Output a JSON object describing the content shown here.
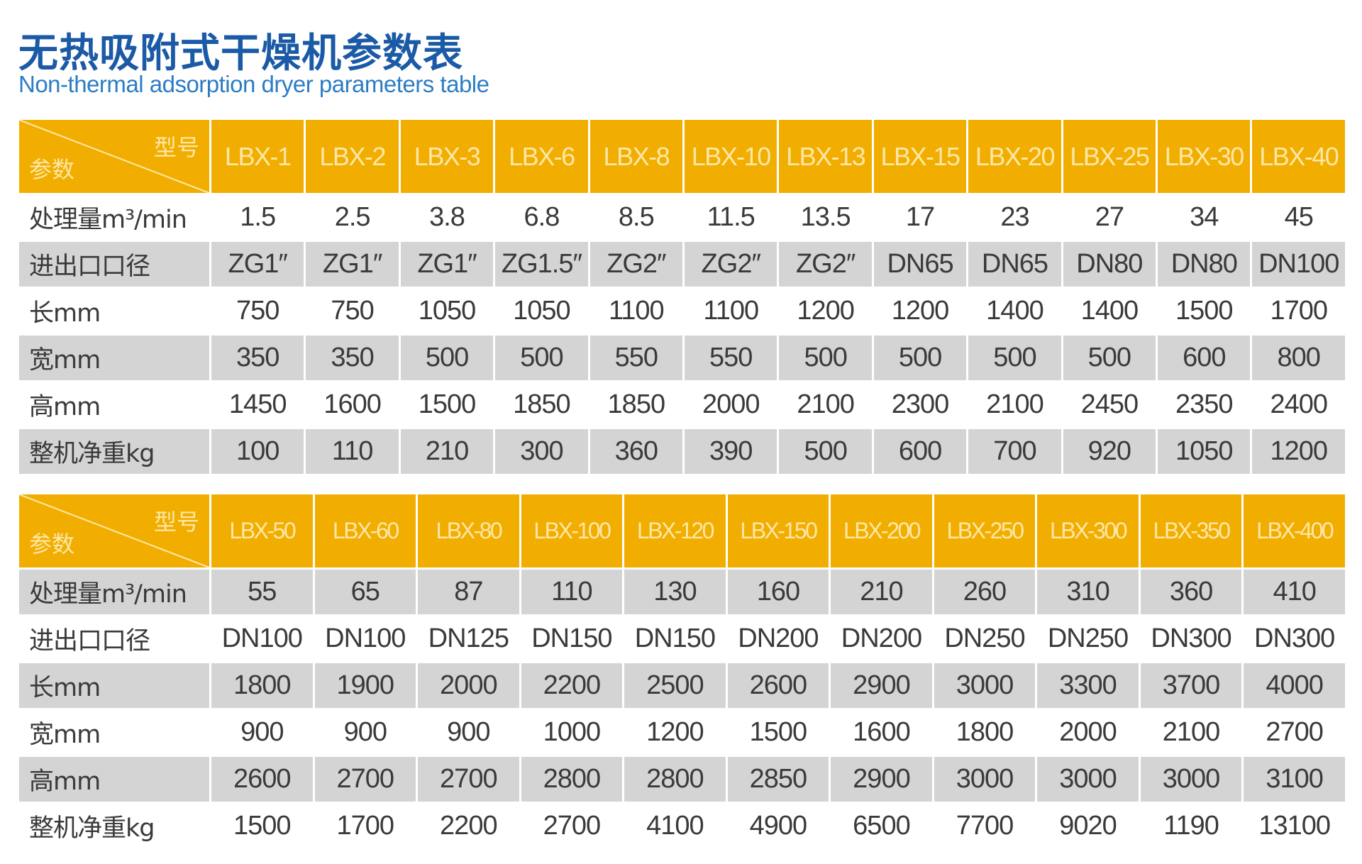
{
  "title": "无热吸附式干燥机参数表",
  "subtitle": "Non-thermal adsorption dryer parameters table",
  "colors": {
    "header": "#f2ae00",
    "stripe": "#d4d4d4",
    "title": "#1b5aa6"
  },
  "corner": {
    "model_label": "型号",
    "param_label": "参数"
  },
  "row_labels": [
    "处理量m³/min",
    "进出口口径",
    "长mm",
    "宽mm",
    "高mm",
    "整机净重kg"
  ],
  "tables": [
    {
      "models": [
        "LBX-1",
        "LBX-2",
        "LBX-3",
        "LBX-6",
        "LBX-8",
        "LBX-10",
        "LBX-13",
        "LBX-15",
        "LBX-20",
        "LBX-25",
        "LBX-30",
        "LBX-40"
      ],
      "rows": [
        [
          "1.5",
          "2.5",
          "3.8",
          "6.8",
          "8.5",
          "11.5",
          "13.5",
          "17",
          "23",
          "27",
          "34",
          "45"
        ],
        [
          "ZG1″",
          "ZG1″",
          "ZG1″",
          "ZG1.5″",
          "ZG2″",
          "ZG2″",
          "ZG2″",
          "DN65",
          "DN65",
          "DN80",
          "DN80",
          "DN100"
        ],
        [
          "750",
          "750",
          "1050",
          "1050",
          "1100",
          "1100",
          "1200",
          "1200",
          "1400",
          "1400",
          "1500",
          "1700"
        ],
        [
          "350",
          "350",
          "500",
          "500",
          "550",
          "550",
          "500",
          "500",
          "500",
          "500",
          "600",
          "800"
        ],
        [
          "1450",
          "1600",
          "1500",
          "1850",
          "1850",
          "2000",
          "2100",
          "2300",
          "2100",
          "2450",
          "2350",
          "2400"
        ],
        [
          "100",
          "110",
          "210",
          "300",
          "360",
          "390",
          "500",
          "600",
          "700",
          "920",
          "1050",
          "1200"
        ]
      ]
    },
    {
      "models": [
        "LBX-50",
        "LBX-60",
        "LBX-80",
        "LBX-100",
        "LBX-120",
        "LBX-150",
        "LBX-200",
        "LBX-250",
        "LBX-300",
        "LBX-350",
        "LBX-400"
      ],
      "rows": [
        [
          "55",
          "65",
          "87",
          "110",
          "130",
          "160",
          "210",
          "260",
          "310",
          "360",
          "410"
        ],
        [
          "DN100",
          "DN100",
          "DN125",
          "DN150",
          "DN150",
          "DN200",
          "DN200",
          "DN250",
          "DN250",
          "DN300",
          "DN300"
        ],
        [
          "1800",
          "1900",
          "2000",
          "2200",
          "2500",
          "2600",
          "2900",
          "3000",
          "3300",
          "3700",
          "4000"
        ],
        [
          "900",
          "900",
          "900",
          "1000",
          "1200",
          "1500",
          "1600",
          "1800",
          "2000",
          "2100",
          "2700"
        ],
        [
          "2600",
          "2700",
          "2700",
          "2800",
          "2800",
          "2850",
          "2900",
          "3000",
          "3000",
          "3000",
          "3100"
        ],
        [
          "1500",
          "1700",
          "2200",
          "2700",
          "4100",
          "4900",
          "6500",
          "7700",
          "9020",
          "1190",
          "13100"
        ]
      ]
    }
  ]
}
